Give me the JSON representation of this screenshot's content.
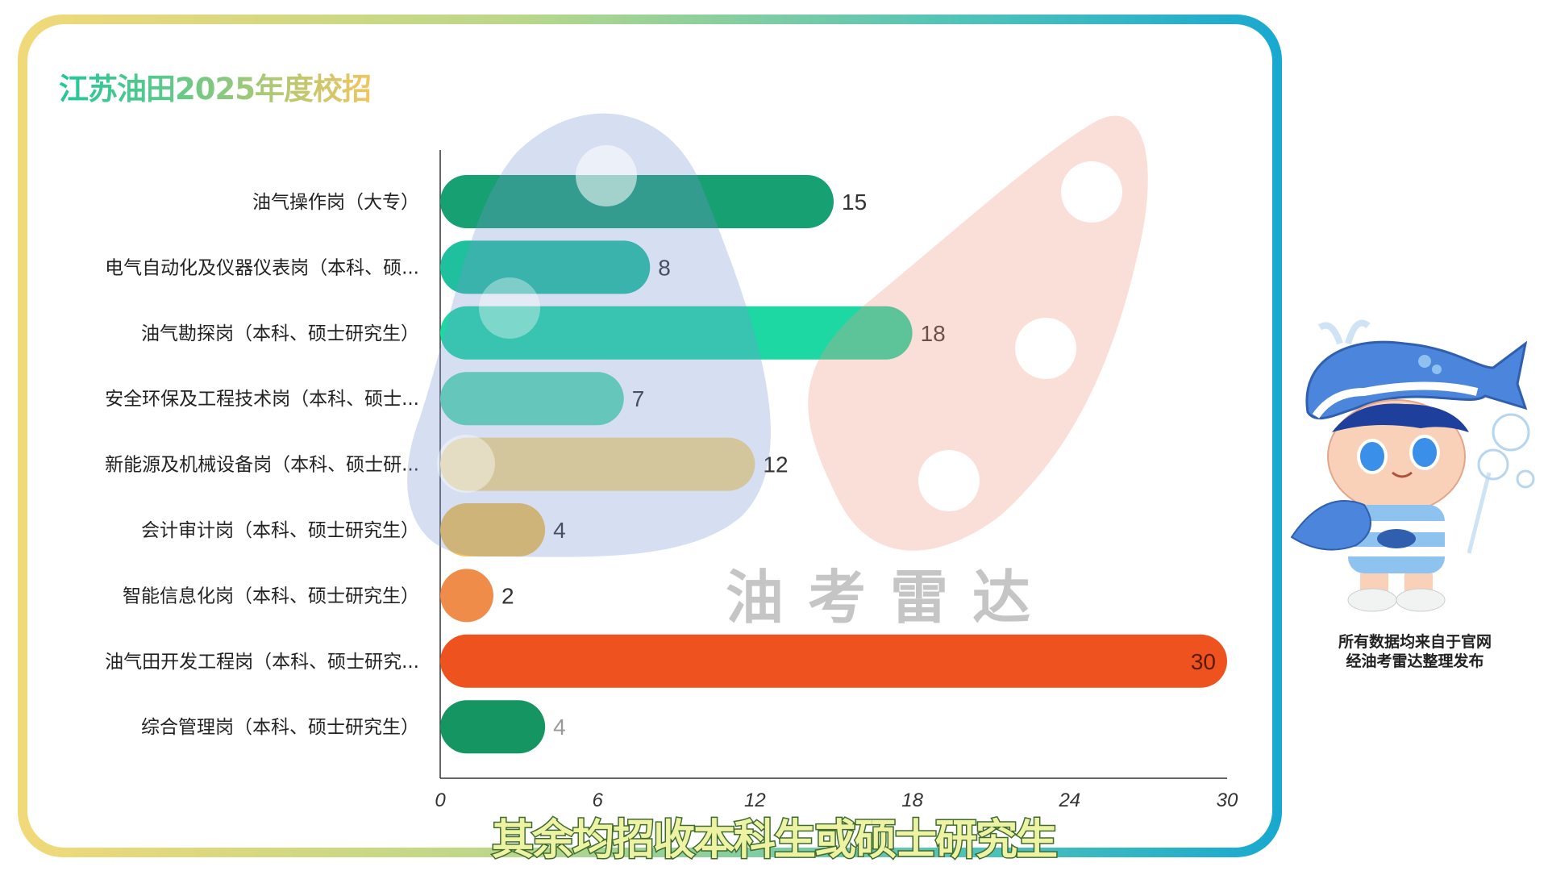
{
  "chart_data": {
    "type": "bar",
    "orientation": "horizontal",
    "title": "江苏油田2025年度校招",
    "categories": [
      "油气操作岗（大专）",
      "电气自动化及仪器仪表岗（本科、硕...",
      "油气勘探岗（本科、硕士研究生）",
      "安全环保及工程技术岗（本科、硕士...",
      "新能源及机械设备岗（本科、硕士研...",
      "会计审计岗（本科、硕士研究生）",
      "智能信息化岗（本科、硕士研究生）",
      "油气田开发工程岗（本科、硕士研究...",
      "综合管理岗（本科、硕士研究生）"
    ],
    "values": [
      15,
      8,
      18,
      7,
      12,
      4,
      2,
      30,
      4
    ],
    "colors": [
      "#17a071",
      "#1fc09d",
      "#1dd8a2",
      "#5ddcb2",
      "#fbdc86",
      "#f5c254",
      "#ef8c49",
      "#ee521f",
      "#149561"
    ],
    "xlim": [
      0,
      30
    ],
    "xticks": [
      "0",
      "6",
      "12",
      "18",
      "24",
      "30"
    ],
    "xlabel": "",
    "ylabel": "",
    "grid": false,
    "legend": "none"
  },
  "caption": "其余均招收本科生或硕士研究生",
  "watermark": "油考雷达",
  "note": {
    "line1": "所有数据均来自于官网",
    "line2": "经油考雷达整理发布"
  }
}
